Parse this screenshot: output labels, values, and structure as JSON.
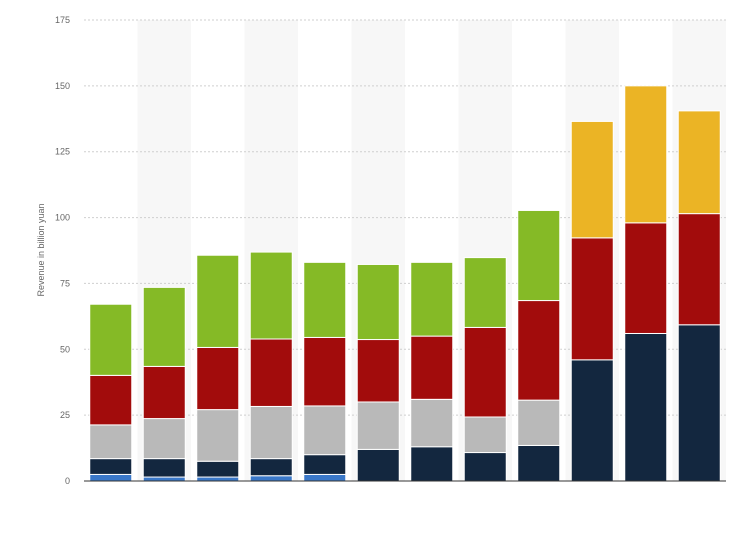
{
  "chart_data": {
    "type": "bar",
    "stacked": true,
    "ylabel": "Revenue in billion yuan",
    "ylim": [
      0,
      175
    ],
    "yticks": [
      0,
      25,
      50,
      75,
      100,
      125,
      150,
      175
    ],
    "grid": true,
    "legend": "none",
    "categories": [
      "",
      "",
      "",
      "",
      "",
      "",
      "",
      "",
      "",
      "",
      "",
      ""
    ],
    "series": [
      {
        "color": "#3a78c9",
        "values": [
          2.5,
          1.5,
          1.5,
          2.0,
          2.5,
          0,
          0,
          0,
          0,
          0,
          0,
          0
        ]
      },
      {
        "color": "#13273f",
        "values": [
          6.0,
          7.0,
          6.0,
          6.5,
          7.5,
          12.0,
          13.0,
          10.8,
          13.5,
          46.0,
          56.0,
          59.3
        ]
      },
      {
        "color": "#b9b9b9",
        "values": [
          12.8,
          15.2,
          19.6,
          19.8,
          18.5,
          18.0,
          18.0,
          13.5,
          17.2,
          0,
          0,
          0
        ]
      },
      {
        "color": "#a20c0c",
        "values": [
          18.8,
          19.8,
          23.6,
          25.6,
          26.0,
          23.7,
          24.0,
          34.0,
          37.8,
          46.3,
          42.0,
          42.2
        ]
      },
      {
        "color": "#85ba26",
        "values": [
          27.0,
          30.0,
          35.0,
          33.0,
          28.5,
          28.5,
          28.0,
          26.5,
          34.2,
          0,
          0,
          0
        ]
      },
      {
        "color": "#ebb425",
        "values": [
          0,
          0,
          0,
          0,
          0,
          0,
          0,
          0,
          0,
          44.2,
          52.0,
          39.0
        ]
      }
    ]
  }
}
